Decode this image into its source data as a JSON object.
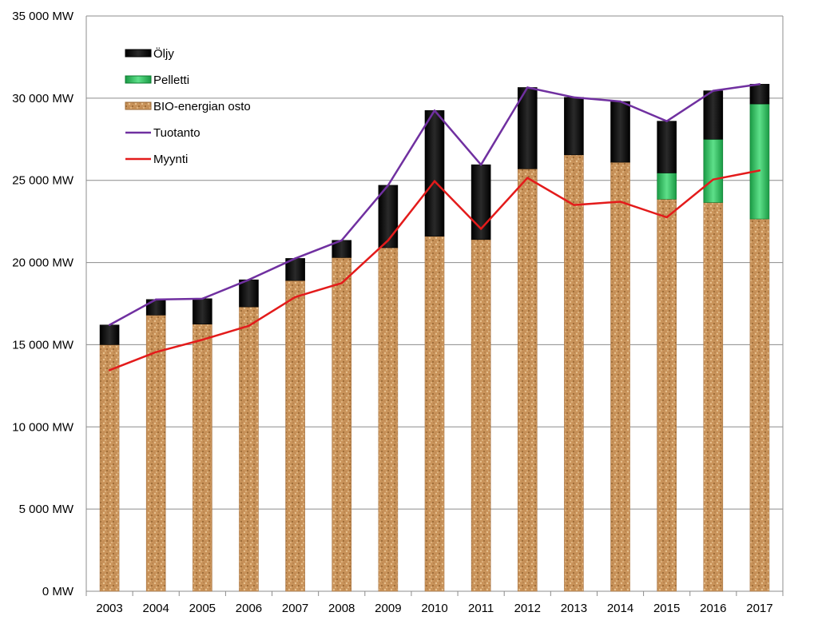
{
  "chart_data": {
    "type": "bar",
    "stacked": true,
    "categories": [
      "2003",
      "2004",
      "2005",
      "2006",
      "2007",
      "2008",
      "2009",
      "2010",
      "2011",
      "2012",
      "2013",
      "2014",
      "2015",
      "2016",
      "2017"
    ],
    "series": [
      {
        "name": "BIO-energian osto",
        "kind": "bar",
        "color": "#c9935a",
        "values": [
          15000,
          16800,
          16250,
          17300,
          18900,
          20300,
          20900,
          21600,
          21400,
          25700,
          26550,
          26100,
          23850,
          23650,
          22650
        ]
      },
      {
        "name": "Pelletti",
        "kind": "bar",
        "color": "#2ec05c",
        "values": [
          0,
          0,
          0,
          0,
          0,
          0,
          0,
          0,
          0,
          0,
          0,
          0,
          1600,
          3850,
          7000
        ]
      },
      {
        "name": "Öljy",
        "kind": "bar",
        "color": "#111111",
        "values": [
          1200,
          950,
          1550,
          1650,
          1350,
          1050,
          3800,
          7650,
          4550,
          4950,
          3500,
          3700,
          3150,
          2950,
          1200
        ]
      },
      {
        "name": "Tuotanto",
        "kind": "line",
        "color": "#7030a0",
        "values": [
          16200,
          17750,
          17800,
          18950,
          20250,
          21350,
          24700,
          29250,
          25950,
          30650,
          30050,
          29800,
          28600,
          30450,
          30850
        ]
      },
      {
        "name": "Myynti",
        "kind": "line",
        "color": "#e31b1b",
        "values": [
          13450,
          14550,
          15300,
          16150,
          17900,
          18750,
          21350,
          24950,
          22050,
          25150,
          23500,
          23700,
          22750,
          25050,
          25600
        ]
      }
    ],
    "legend": [
      "Öljy",
      "Pelletti",
      "BIO-energian osto",
      "Tuotanto",
      "Myynti"
    ],
    "legend_position": "top-left",
    "y_ticks": [
      "0 MW",
      "5 000 MW",
      "10 000 MW",
      "15 000 MW",
      "20 000 MW",
      "25 000 MW",
      "30 000 MW",
      "35 000 MW"
    ],
    "ylim": [
      0,
      35000
    ],
    "grid": true,
    "title": "",
    "xlabel": "",
    "ylabel": ""
  }
}
